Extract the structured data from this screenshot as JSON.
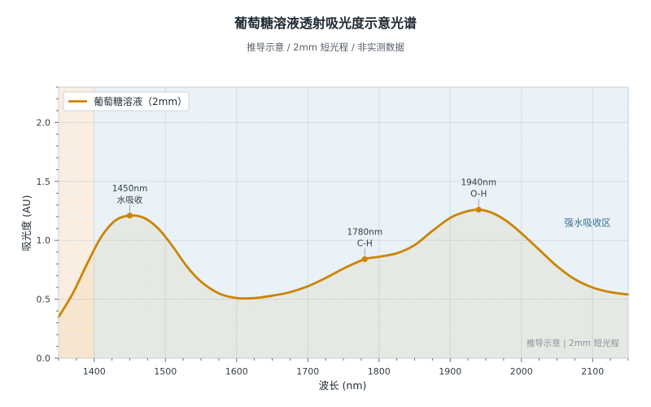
{
  "chart_data": {
    "type": "line",
    "title": "葡萄糖溶液透射吸光度示意光谱",
    "subtitle": "推导示意 / 2mm 短光程 / 非实测数据",
    "xlabel": "波长 (nm)",
    "ylabel": "吸光度 (AU)",
    "xlim": [
      1350,
      2150
    ],
    "ylim": [
      0,
      2.3
    ],
    "xticks": [
      1400,
      1500,
      1600,
      1700,
      1800,
      1900,
      2000,
      2100
    ],
    "yticks": [
      "0.0",
      "0.5",
      "1.0",
      "1.5",
      "2.0"
    ],
    "grid": true,
    "legend_position": "top-left",
    "series": [
      {
        "name": "葡萄糖溶液（2mm）",
        "color": "#cc8400",
        "x": [
          1350,
          1370,
          1390,
          1410,
          1430,
          1450,
          1470,
          1490,
          1510,
          1530,
          1550,
          1575,
          1600,
          1625,
          1650,
          1675,
          1700,
          1725,
          1750,
          1780,
          1800,
          1825,
          1850,
          1875,
          1900,
          1920,
          1940,
          1960,
          1980,
          2000,
          2025,
          2050,
          2075,
          2100,
          2125,
          2150
        ],
        "y": [
          0.35,
          0.55,
          0.8,
          1.03,
          1.17,
          1.21,
          1.19,
          1.1,
          0.95,
          0.78,
          0.65,
          0.55,
          0.51,
          0.51,
          0.53,
          0.56,
          0.61,
          0.68,
          0.76,
          0.84,
          0.86,
          0.89,
          0.96,
          1.08,
          1.19,
          1.24,
          1.26,
          1.23,
          1.16,
          1.06,
          0.92,
          0.78,
          0.67,
          0.6,
          0.56,
          0.54
        ]
      }
    ],
    "annotations": [
      {
        "x": 1450,
        "y": 1.21,
        "line1": "1450nm",
        "line2": "水吸收"
      },
      {
        "x": 1780,
        "y": 0.84,
        "line1": "1780nm",
        "line2": "C-H"
      },
      {
        "x": 1940,
        "y": 1.26,
        "line1": "1940nm",
        "line2": "O-H"
      }
    ],
    "shaded_regions": [
      {
        "x0": 1350,
        "x1": 1400,
        "color": "#fbeee0"
      },
      {
        "x0": 1400,
        "x1": 2150,
        "color": "#e8f2f8",
        "label": "强水吸收区"
      }
    ],
    "footnote": "推导示意 | 2mm 短光程"
  }
}
